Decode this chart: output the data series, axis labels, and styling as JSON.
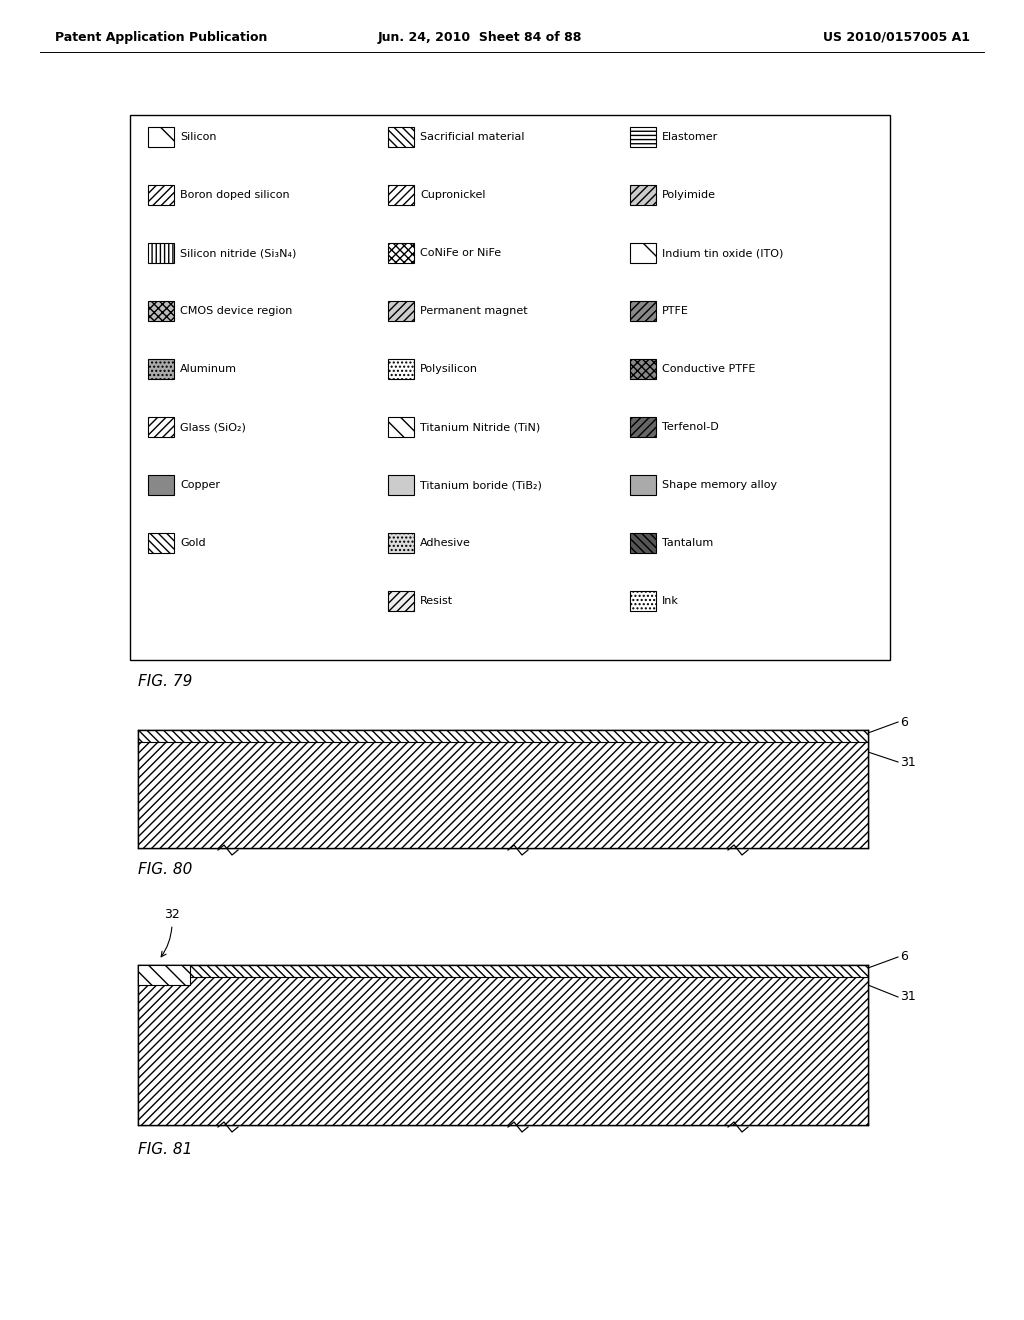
{
  "header_left": "Patent Application Publication",
  "header_mid": "Jun. 24, 2010  Sheet 84 of 88",
  "header_right": "US 2010/0157005 A1",
  "fig79_label": "FIG. 79",
  "fig80_label": "FIG. 80",
  "fig81_label": "FIG. 81",
  "legend_items_col1": [
    "Silicon",
    "Boron doped silicon",
    "Silicon nitride (Si₃N₄)",
    "CMOS device region",
    "Aluminum",
    "Glass (SiO₂)",
    "Copper",
    "Gold"
  ],
  "legend_items_col2": [
    "Sacrificial material",
    "Cupronickel",
    "CoNiFe or NiFe",
    "Permanent magnet",
    "Polysilicon",
    "Titanium Nitride (TiN)",
    "Titanium boride (TiB₂)",
    "Adhesive",
    "Resist"
  ],
  "legend_items_col3": [
    "Elastomer",
    "Polyimide",
    "Indium tin oxide (ITO)",
    "PTFE",
    "Conductive PTFE",
    "Terfenol-D",
    "Shape memory alloy",
    "Tantalum",
    "Ink"
  ],
  "bg_color": "#ffffff"
}
